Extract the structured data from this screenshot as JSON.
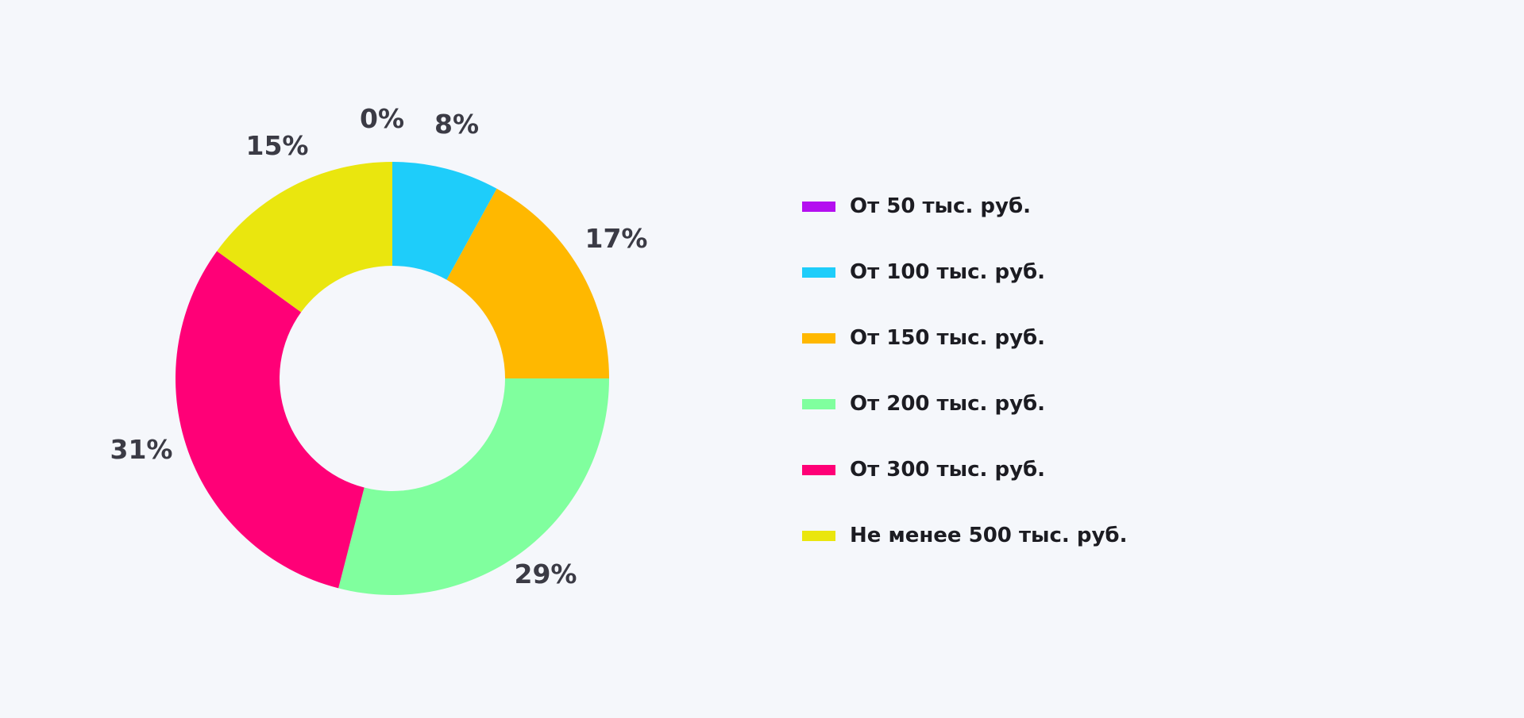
{
  "chart_data": {
    "type": "pie",
    "donut": true,
    "legend_position": "right",
    "slices": [
      {
        "label": "От 50 тыс. руб.",
        "value": 0,
        "display": "0%",
        "color": "#b40ff0"
      },
      {
        "label": "От 100 тыс. руб.",
        "value": 8,
        "display": "8%",
        "color": "#1ecdfa"
      },
      {
        "label": "От 150 тыс. руб.",
        "value": 17,
        "display": "17%",
        "color": "#ffb800"
      },
      {
        "label": "От 200 тыс. руб.",
        "value": 29,
        "display": "29%",
        "color": "#80ff9e"
      },
      {
        "label": "От 300 тыс. руб.",
        "value": 31,
        "display": "31%",
        "color": "#ff0077"
      },
      {
        "label": "Не менее 500 тыс. руб.",
        "value": 15,
        "display": "15%",
        "color": "#eae60e"
      }
    ]
  }
}
